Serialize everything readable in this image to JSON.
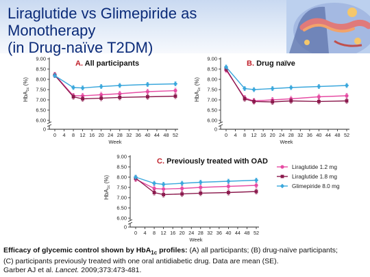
{
  "slide": {
    "title_line1": "Liraglutide vs Glimepiride as Monotherapy",
    "title_line2": "(in Drug-naïve T2DM)",
    "caption_bold_a": "Efficacy of glycemic control shown by HbA",
    "caption_bold_sub": "1c",
    "caption_bold_b": " profiles:",
    "caption_rest_line1": " (A) all participants; (B) drug-naïve participants;",
    "caption_line2": "(C) participants previously treated with one oral antidiabetic drug. Data are mean (SE).",
    "citation_pre": "Garber AJ et al. ",
    "citation_journal": "Lancet.",
    "citation_post": " 2009;373:473-481."
  },
  "colors": {
    "title": "#0a2a78",
    "lira12": "#e64ba3",
    "lira18": "#8b1a4d",
    "glim": "#3aa7dc",
    "panel_letter": "#c0222c"
  },
  "legend": [
    {
      "name": "Liraglutide 1.2 mg",
      "color": "#e64ba3",
      "marker": "circle"
    },
    {
      "name": "Liraglutide 1.8 mg",
      "color": "#8b1a4d",
      "marker": "square"
    },
    {
      "name": "Glimepiride 8.0 mg",
      "color": "#3aa7dc",
      "marker": "diamond"
    }
  ],
  "chart_data": [
    {
      "type": "line",
      "panel_letter": "A.",
      "title": "All participants",
      "xlabel": "Week",
      "ylabel": "HbA1c (%)",
      "x": [
        0,
        8,
        12,
        20,
        28,
        40,
        52
      ],
      "x_ticks": [
        0,
        4,
        8,
        12,
        16,
        20,
        24,
        28,
        32,
        36,
        40,
        44,
        48,
        52
      ],
      "y_ticks": [
        6.0,
        6.5,
        7.0,
        7.5,
        8.0,
        8.5,
        9.0
      ],
      "ylim": [
        6.0,
        9.0
      ],
      "y_break_to": 0,
      "series": [
        {
          "name": "Liraglutide 1.2 mg",
          "values": [
            8.22,
            7.2,
            7.2,
            7.25,
            7.3,
            7.4,
            7.45
          ]
        },
        {
          "name": "Liraglutide 1.8 mg",
          "values": [
            8.2,
            7.15,
            7.05,
            7.08,
            7.12,
            7.15,
            7.18
          ]
        },
        {
          "name": "Glimepiride 8.0 mg",
          "values": [
            8.18,
            7.6,
            7.58,
            7.65,
            7.7,
            7.75,
            7.78
          ]
        }
      ]
    },
    {
      "type": "line",
      "panel_letter": "B.",
      "title": "Drug naïve",
      "xlabel": "Week",
      "ylabel": "HbA1c (%)",
      "x": [
        0,
        8,
        12,
        20,
        28,
        40,
        52
      ],
      "x_ticks": [
        0,
        4,
        8,
        12,
        16,
        20,
        24,
        28,
        32,
        36,
        40,
        44,
        48,
        52
      ],
      "y_ticks": [
        6.0,
        6.5,
        7.0,
        7.5,
        8.0,
        8.5,
        9.0
      ],
      "ylim": [
        6.0,
        9.0
      ],
      "y_break_to": 0,
      "series": [
        {
          "name": "Liraglutide 1.2 mg",
          "values": [
            8.45,
            7.1,
            6.95,
            7.0,
            7.05,
            7.15,
            7.2
          ]
        },
        {
          "name": "Liraglutide 1.8 mg",
          "values": [
            8.5,
            7.05,
            6.92,
            6.9,
            6.95,
            6.92,
            6.95
          ]
        },
        {
          "name": "Glimepiride 8.0 mg",
          "values": [
            8.6,
            7.55,
            7.5,
            7.55,
            7.6,
            7.65,
            7.7
          ]
        }
      ]
    },
    {
      "type": "line",
      "panel_letter": "C.",
      "title": "Previously treated with OAD",
      "xlabel": "Week",
      "ylabel": "HbA1c (%)",
      "x": [
        0,
        8,
        12,
        20,
        28,
        40,
        52
      ],
      "x_ticks": [
        0,
        4,
        8,
        12,
        16,
        20,
        24,
        28,
        32,
        36,
        40,
        44,
        48,
        52
      ],
      "y_ticks": [
        6.0,
        6.5,
        7.0,
        7.5,
        8.0,
        8.5,
        9.0
      ],
      "ylim": [
        6.0,
        9.0
      ],
      "y_break_to": 0,
      "series": [
        {
          "name": "Liraglutide 1.2 mg",
          "values": [
            7.9,
            7.45,
            7.42,
            7.45,
            7.5,
            7.55,
            7.6
          ]
        },
        {
          "name": "Liraglutide 1.8 mg",
          "values": [
            7.95,
            7.25,
            7.15,
            7.18,
            7.22,
            7.25,
            7.3
          ]
        },
        {
          "name": "Glimepiride 8.0 mg",
          "values": [
            8.0,
            7.7,
            7.65,
            7.7,
            7.75,
            7.8,
            7.85
          ]
        }
      ]
    }
  ]
}
